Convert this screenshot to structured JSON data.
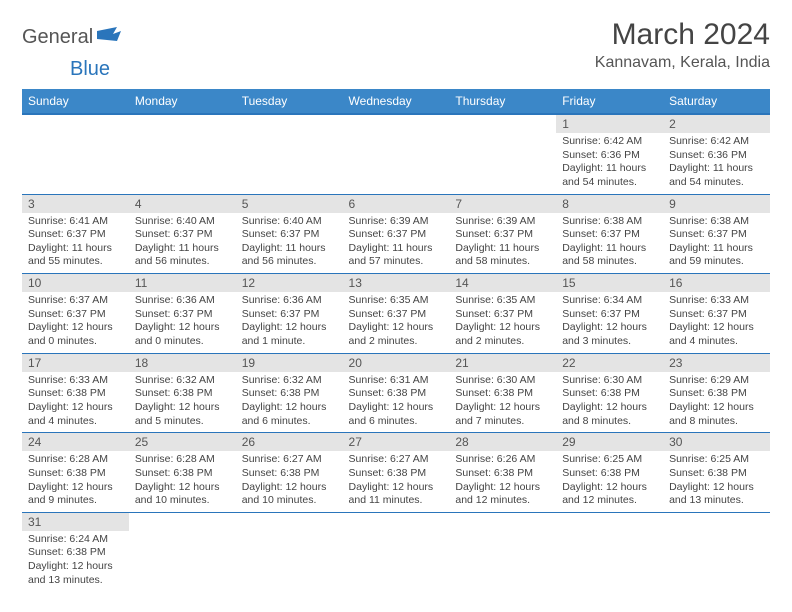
{
  "brand": {
    "general": "General",
    "blue": "Blue"
  },
  "header": {
    "title": "March 2024",
    "location": "Kannavam, Kerala, India"
  },
  "colors": {
    "header_bg": "#3b87c8",
    "header_border": "#2a75bb",
    "row_border": "#2a75bb",
    "daynum_bg": "#e4e4e4",
    "text": "#444444",
    "brand_blue": "#2a75bb"
  },
  "day_labels": [
    "Sunday",
    "Monday",
    "Tuesday",
    "Wednesday",
    "Thursday",
    "Friday",
    "Saturday"
  ],
  "weeks": [
    [
      null,
      null,
      null,
      null,
      null,
      {
        "n": "1",
        "sr": "6:42 AM",
        "ss": "6:36 PM",
        "dl": "11 hours and 54 minutes."
      },
      {
        "n": "2",
        "sr": "6:42 AM",
        "ss": "6:36 PM",
        "dl": "11 hours and 54 minutes."
      }
    ],
    [
      {
        "n": "3",
        "sr": "6:41 AM",
        "ss": "6:37 PM",
        "dl": "11 hours and 55 minutes."
      },
      {
        "n": "4",
        "sr": "6:40 AM",
        "ss": "6:37 PM",
        "dl": "11 hours and 56 minutes."
      },
      {
        "n": "5",
        "sr": "6:40 AM",
        "ss": "6:37 PM",
        "dl": "11 hours and 56 minutes."
      },
      {
        "n": "6",
        "sr": "6:39 AM",
        "ss": "6:37 PM",
        "dl": "11 hours and 57 minutes."
      },
      {
        "n": "7",
        "sr": "6:39 AM",
        "ss": "6:37 PM",
        "dl": "11 hours and 58 minutes."
      },
      {
        "n": "8",
        "sr": "6:38 AM",
        "ss": "6:37 PM",
        "dl": "11 hours and 58 minutes."
      },
      {
        "n": "9",
        "sr": "6:38 AM",
        "ss": "6:37 PM",
        "dl": "11 hours and 59 minutes."
      }
    ],
    [
      {
        "n": "10",
        "sr": "6:37 AM",
        "ss": "6:37 PM",
        "dl": "12 hours and 0 minutes."
      },
      {
        "n": "11",
        "sr": "6:36 AM",
        "ss": "6:37 PM",
        "dl": "12 hours and 0 minutes."
      },
      {
        "n": "12",
        "sr": "6:36 AM",
        "ss": "6:37 PM",
        "dl": "12 hours and 1 minute."
      },
      {
        "n": "13",
        "sr": "6:35 AM",
        "ss": "6:37 PM",
        "dl": "12 hours and 2 minutes."
      },
      {
        "n": "14",
        "sr": "6:35 AM",
        "ss": "6:37 PM",
        "dl": "12 hours and 2 minutes."
      },
      {
        "n": "15",
        "sr": "6:34 AM",
        "ss": "6:37 PM",
        "dl": "12 hours and 3 minutes."
      },
      {
        "n": "16",
        "sr": "6:33 AM",
        "ss": "6:37 PM",
        "dl": "12 hours and 4 minutes."
      }
    ],
    [
      {
        "n": "17",
        "sr": "6:33 AM",
        "ss": "6:38 PM",
        "dl": "12 hours and 4 minutes."
      },
      {
        "n": "18",
        "sr": "6:32 AM",
        "ss": "6:38 PM",
        "dl": "12 hours and 5 minutes."
      },
      {
        "n": "19",
        "sr": "6:32 AM",
        "ss": "6:38 PM",
        "dl": "12 hours and 6 minutes."
      },
      {
        "n": "20",
        "sr": "6:31 AM",
        "ss": "6:38 PM",
        "dl": "12 hours and 6 minutes."
      },
      {
        "n": "21",
        "sr": "6:30 AM",
        "ss": "6:38 PM",
        "dl": "12 hours and 7 minutes."
      },
      {
        "n": "22",
        "sr": "6:30 AM",
        "ss": "6:38 PM",
        "dl": "12 hours and 8 minutes."
      },
      {
        "n": "23",
        "sr": "6:29 AM",
        "ss": "6:38 PM",
        "dl": "12 hours and 8 minutes."
      }
    ],
    [
      {
        "n": "24",
        "sr": "6:28 AM",
        "ss": "6:38 PM",
        "dl": "12 hours and 9 minutes."
      },
      {
        "n": "25",
        "sr": "6:28 AM",
        "ss": "6:38 PM",
        "dl": "12 hours and 10 minutes."
      },
      {
        "n": "26",
        "sr": "6:27 AM",
        "ss": "6:38 PM",
        "dl": "12 hours and 10 minutes."
      },
      {
        "n": "27",
        "sr": "6:27 AM",
        "ss": "6:38 PM",
        "dl": "12 hours and 11 minutes."
      },
      {
        "n": "28",
        "sr": "6:26 AM",
        "ss": "6:38 PM",
        "dl": "12 hours and 12 minutes."
      },
      {
        "n": "29",
        "sr": "6:25 AM",
        "ss": "6:38 PM",
        "dl": "12 hours and 12 minutes."
      },
      {
        "n": "30",
        "sr": "6:25 AM",
        "ss": "6:38 PM",
        "dl": "12 hours and 13 minutes."
      }
    ],
    [
      {
        "n": "31",
        "sr": "6:24 AM",
        "ss": "6:38 PM",
        "dl": "12 hours and 13 minutes."
      },
      null,
      null,
      null,
      null,
      null,
      null
    ]
  ],
  "labels": {
    "sunrise": "Sunrise: ",
    "sunset": "Sunset: ",
    "daylight": "Daylight: "
  }
}
